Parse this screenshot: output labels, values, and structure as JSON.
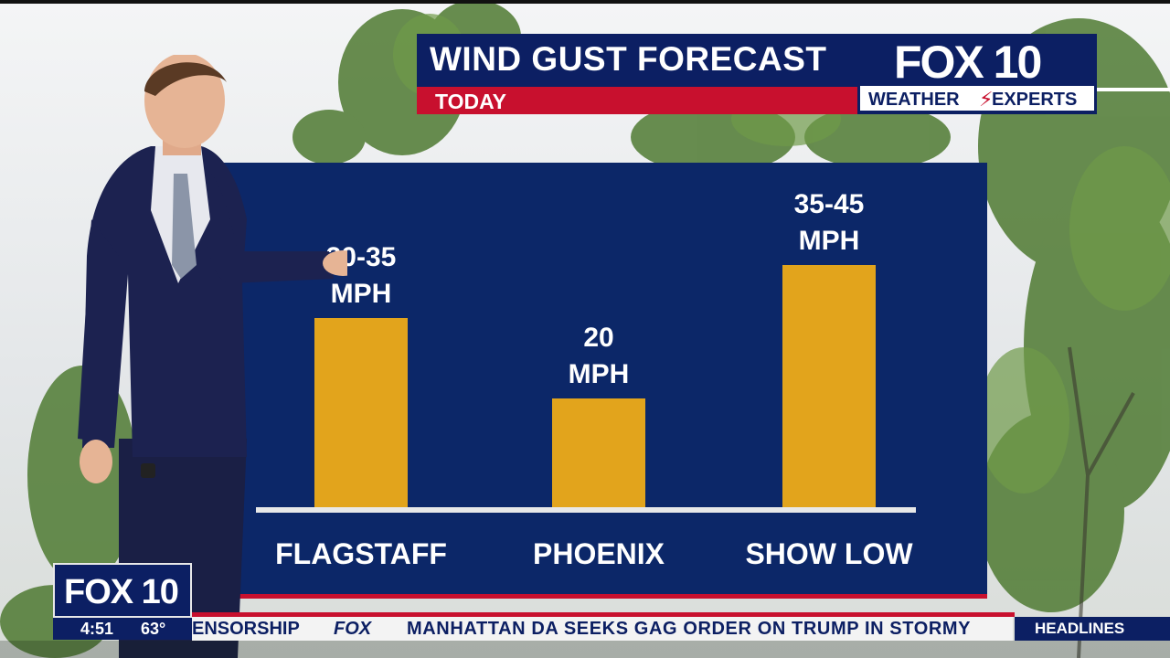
{
  "title": "WIND GUST FORECAST",
  "subtitle": "TODAY",
  "brand": {
    "logo_text": "FOX 10",
    "tagline_left": "WEATHER",
    "tagline_bolt": "⚡",
    "tagline_right": "EXPERTS"
  },
  "chart_data": {
    "type": "bar",
    "title": "WIND GUST FORECAST",
    "subtitle": "TODAY",
    "categories": [
      "FLAGSTAFF",
      "PHOENIX",
      "SHOW LOW"
    ],
    "values": [
      35,
      20,
      45
    ],
    "value_ranges": [
      [
        30,
        35
      ],
      [
        20,
        20
      ],
      [
        35,
        45
      ]
    ],
    "data_labels": [
      "30-35",
      "20",
      "35-45"
    ],
    "unit": "MPH",
    "ylim": [
      0,
      45
    ],
    "grid": false,
    "legend": "none",
    "colors": {
      "bar": "#e2a41c",
      "panel": "#0c2768",
      "baseline": "#e8e8e8"
    }
  },
  "lower_third": {
    "bug_text": "FOX 10",
    "time": "4:51",
    "temperature": "63°",
    "ticker_previous": "ENSORSHIP",
    "ticker_brand": "FOX",
    "ticker_headline": "MANHATTAN DA SEEKS GAG ORDER ON TRUMP IN STORMY",
    "headlines_label": "HEADLINES"
  },
  "colors": {
    "navy": "#0c1f63",
    "red": "#c8102e",
    "gold": "#e2a41c"
  }
}
